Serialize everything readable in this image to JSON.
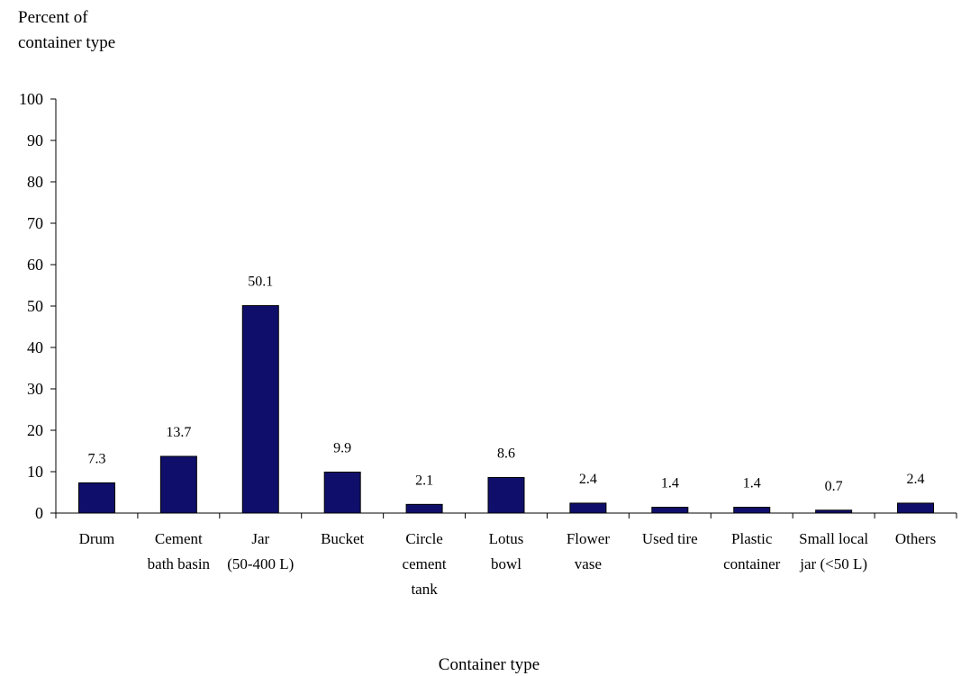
{
  "chart_data": {
    "type": "bar",
    "title": "",
    "ylabel": [
      "Percent of",
      "container type"
    ],
    "xlabel": "Container type",
    "ylim": [
      0,
      100
    ],
    "yticks": [
      0,
      10,
      20,
      30,
      40,
      50,
      60,
      70,
      80,
      90,
      100
    ],
    "grid": false,
    "legend": "none",
    "bar_color": "#0f0f6b",
    "categories": [
      [
        "Drum"
      ],
      [
        "Cement",
        "bath basin"
      ],
      [
        "Jar",
        "(50-400 L)"
      ],
      [
        "Bucket"
      ],
      [
        "Circle",
        "cement",
        "tank"
      ],
      [
        "Lotus",
        "bowl"
      ],
      [
        "Flower",
        "vase"
      ],
      [
        "Used tire"
      ],
      [
        "Plastic",
        "container"
      ],
      [
        "Small local",
        "jar (<50 L)"
      ],
      [
        "Others"
      ]
    ],
    "values": [
      7.3,
      13.7,
      50.1,
      9.9,
      2.1,
      8.6,
      2.4,
      1.4,
      1.4,
      0.7,
      2.4
    ],
    "data_labels": [
      "7.3",
      "13.7",
      "50.1",
      "9.9",
      "2.1",
      "8.6",
      "2.4",
      "1.4",
      "1.4",
      "0.7",
      "2.4"
    ]
  }
}
